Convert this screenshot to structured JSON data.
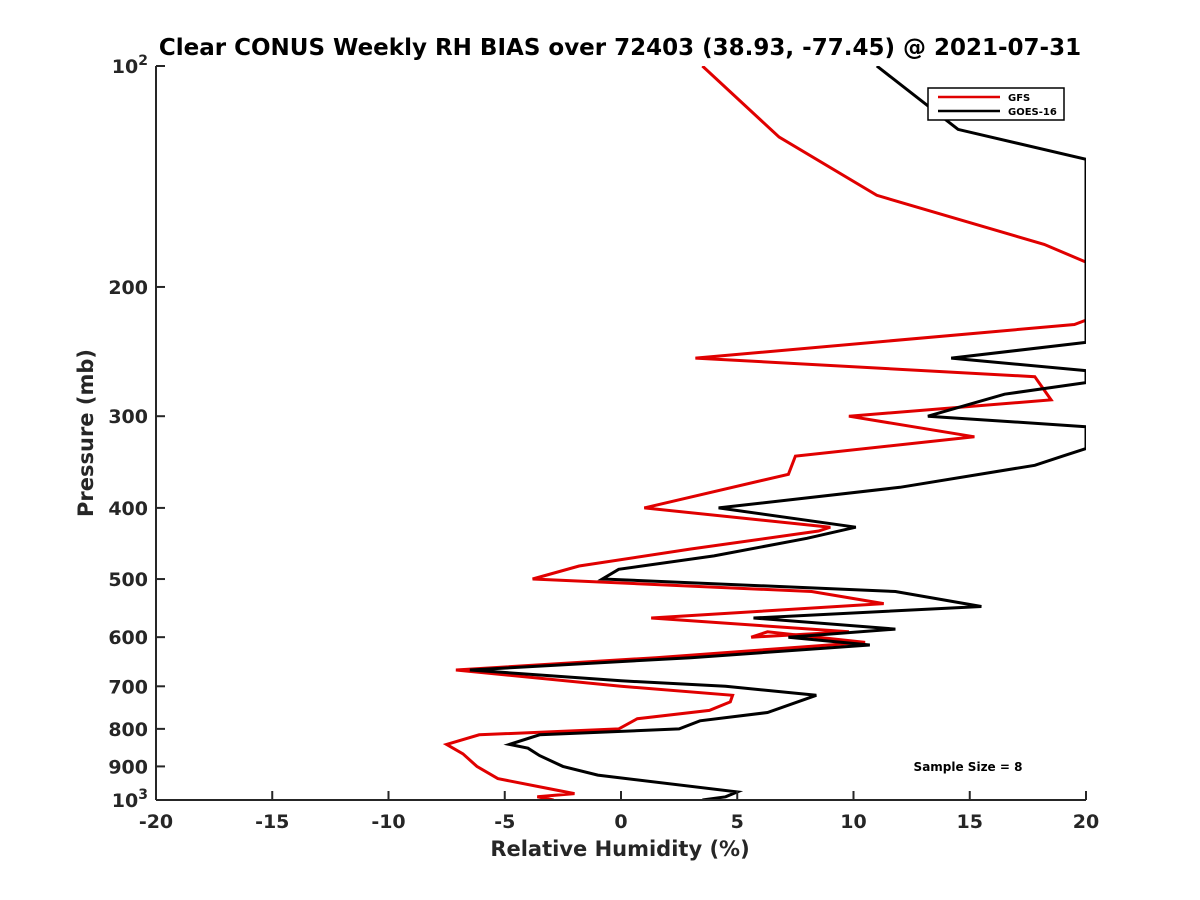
{
  "chart_data": {
    "type": "line",
    "title": "Clear CONUS Weekly RH BIAS over 72403 (38.93, -77.45) @ 2021-07-31",
    "xlabel": "Relative Humidity (%)",
    "ylabel": "Pressure (mb)",
    "xlim": [
      -20,
      20
    ],
    "ylim": [
      100,
      1000
    ],
    "yscale": "log",
    "y_reversed": true,
    "grid": false,
    "legend_position": "top-right",
    "x_ticks": [
      -20,
      -15,
      -10,
      -5,
      0,
      5,
      10,
      15,
      20
    ],
    "x_tick_labels": [
      "-20",
      "-15",
      "-10",
      "-5",
      "0",
      "5",
      "10",
      "15",
      "20"
    ],
    "y_ticks": [
      100,
      200,
      300,
      400,
      500,
      600,
      700,
      800,
      900,
      1000
    ],
    "y_tick_labels": [
      {
        "base": "10",
        "exp": "2"
      },
      {
        "base": "200",
        "exp": ""
      },
      {
        "base": "300",
        "exp": ""
      },
      {
        "base": "400",
        "exp": ""
      },
      {
        "base": "500",
        "exp": ""
      },
      {
        "base": "600",
        "exp": ""
      },
      {
        "base": "700",
        "exp": ""
      },
      {
        "base": "800",
        "exp": ""
      },
      {
        "base": "900",
        "exp": ""
      },
      {
        "base": "10",
        "exp": "3"
      }
    ],
    "annotation": "Sample Size = 8",
    "series": [
      {
        "name": "GFS",
        "color": "#e00000",
        "points": [
          {
            "x": 3.5,
            "y": 100
          },
          {
            "x": 6.8,
            "y": 125
          },
          {
            "x": 11,
            "y": 150
          },
          {
            "x": 18.2,
            "y": 175
          },
          {
            "x": 20,
            "y": 185
          },
          {
            "x": 20,
            "y": 222
          },
          {
            "x": 19.5,
            "y": 225
          },
          {
            "x": 3.2,
            "y": 250
          },
          {
            "x": 17.8,
            "y": 265
          },
          {
            "x": 18.5,
            "y": 285
          },
          {
            "x": 9.8,
            "y": 300
          },
          {
            "x": 15.2,
            "y": 320
          },
          {
            "x": 7.5,
            "y": 340
          },
          {
            "x": 7.2,
            "y": 360
          },
          {
            "x": 1,
            "y": 400
          },
          {
            "x": 9,
            "y": 425
          },
          {
            "x": 8.5,
            "y": 430
          },
          {
            "x": 3,
            "y": 455
          },
          {
            "x": -1.8,
            "y": 480
          },
          {
            "x": -3.8,
            "y": 500
          },
          {
            "x": 8.2,
            "y": 520
          },
          {
            "x": 11.3,
            "y": 540
          },
          {
            "x": 1.3,
            "y": 565
          },
          {
            "x": 9.8,
            "y": 590
          },
          {
            "x": 5.6,
            "y": 600
          },
          {
            "x": 6.3,
            "y": 590
          },
          {
            "x": 10.5,
            "y": 610
          },
          {
            "x": 1.5,
            "y": 640
          },
          {
            "x": -7.1,
            "y": 665
          },
          {
            "x": 0,
            "y": 700
          },
          {
            "x": 4.8,
            "y": 720
          },
          {
            "x": 4.7,
            "y": 735
          },
          {
            "x": 3.8,
            "y": 755
          },
          {
            "x": 0.7,
            "y": 775
          },
          {
            "x": -0.1,
            "y": 800
          },
          {
            "x": -6.1,
            "y": 815
          },
          {
            "x": -7.5,
            "y": 840
          },
          {
            "x": -6.8,
            "y": 865
          },
          {
            "x": -6.2,
            "y": 900
          },
          {
            "x": -5.3,
            "y": 935
          },
          {
            "x": -3.1,
            "y": 965
          },
          {
            "x": -2,
            "y": 980
          },
          {
            "x": -3.6,
            "y": 990
          },
          {
            "x": -2.9,
            "y": 1000
          }
        ]
      },
      {
        "name": "GOES-16",
        "color": "#000000",
        "points": [
          {
            "x": 11,
            "y": 100
          },
          {
            "x": 14.5,
            "y": 122
          },
          {
            "x": 20,
            "y": 134
          },
          {
            "x": 20,
            "y": 238
          },
          {
            "x": 14.2,
            "y": 250
          },
          {
            "x": 20,
            "y": 260
          },
          {
            "x": 20,
            "y": 270
          },
          {
            "x": 16.5,
            "y": 280
          },
          {
            "x": 13.2,
            "y": 300
          },
          {
            "x": 20,
            "y": 310
          },
          {
            "x": 20,
            "y": 332
          },
          {
            "x": 19,
            "y": 340
          },
          {
            "x": 17.8,
            "y": 350
          },
          {
            "x": 12,
            "y": 375
          },
          {
            "x": 4.2,
            "y": 400
          },
          {
            "x": 10.1,
            "y": 425
          },
          {
            "x": 8,
            "y": 440
          },
          {
            "x": 4,
            "y": 465
          },
          {
            "x": -0.1,
            "y": 485
          },
          {
            "x": -0.8,
            "y": 500
          },
          {
            "x": 11.8,
            "y": 520
          },
          {
            "x": 15.5,
            "y": 545
          },
          {
            "x": 5.7,
            "y": 565
          },
          {
            "x": 11.8,
            "y": 585
          },
          {
            "x": 7.2,
            "y": 600
          },
          {
            "x": 10.7,
            "y": 615
          },
          {
            "x": 3,
            "y": 640
          },
          {
            "x": -6.5,
            "y": 665
          },
          {
            "x": 0,
            "y": 688
          },
          {
            "x": 4.5,
            "y": 700
          },
          {
            "x": 8.4,
            "y": 720
          },
          {
            "x": 6.3,
            "y": 760
          },
          {
            "x": 3.4,
            "y": 780
          },
          {
            "x": 2.5,
            "y": 800
          },
          {
            "x": -3.5,
            "y": 815
          },
          {
            "x": -4.8,
            "y": 840
          },
          {
            "x": -4,
            "y": 850
          },
          {
            "x": -3.5,
            "y": 870
          },
          {
            "x": -2.5,
            "y": 900
          },
          {
            "x": -1,
            "y": 925
          },
          {
            "x": 5,
            "y": 975
          },
          {
            "x": 4.5,
            "y": 990
          },
          {
            "x": 3.5,
            "y": 1000
          }
        ]
      }
    ]
  }
}
